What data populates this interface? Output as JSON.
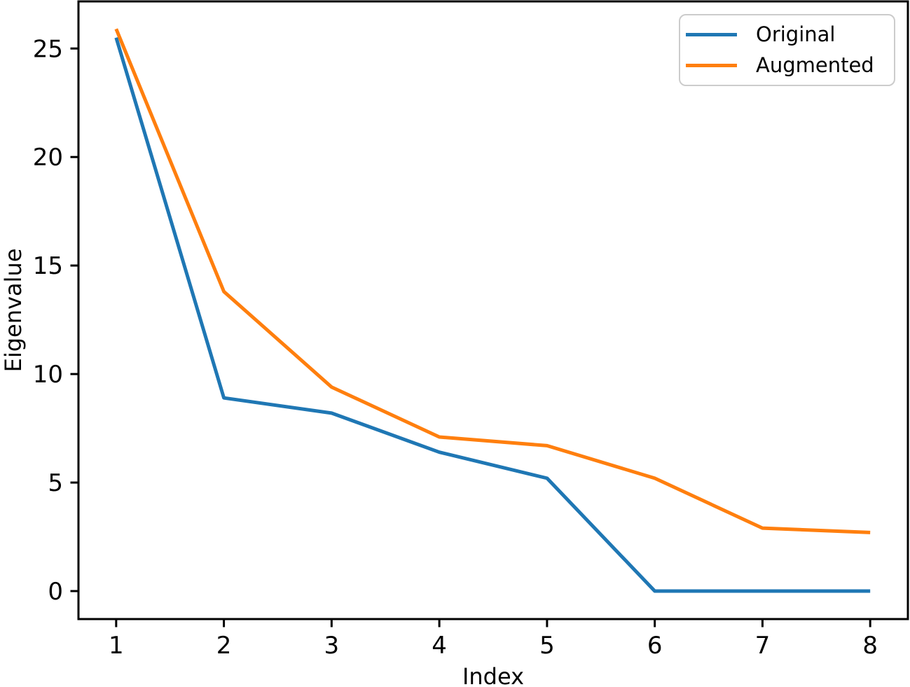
{
  "chart_data": {
    "type": "line",
    "title": "",
    "xlabel": "Index",
    "ylabel": "Eigenvalue",
    "x": [
      1,
      2,
      3,
      4,
      5,
      6,
      7,
      8
    ],
    "series": [
      {
        "name": "Original",
        "color": "#1f77b4",
        "values": [
          25.5,
          8.9,
          8.2,
          6.4,
          5.2,
          0.0,
          0.0,
          0.0
        ]
      },
      {
        "name": "Augmented",
        "color": "#ff7f0e",
        "values": [
          25.9,
          13.8,
          9.4,
          7.1,
          6.7,
          5.2,
          2.9,
          2.7
        ]
      }
    ],
    "xticks": [
      1,
      2,
      3,
      4,
      5,
      6,
      7,
      8
    ],
    "yticks": [
      0,
      5,
      10,
      15,
      20,
      25
    ],
    "xlim": [
      0.65,
      8.35
    ],
    "ylim": [
      -1.29,
      27.17
    ],
    "grid": false,
    "legend": {
      "position": "upper right"
    }
  },
  "colors": {
    "background": "#ffffff",
    "axis": "#000000",
    "text": "#000000",
    "legend_border": "#cccccc",
    "legend_background": "#ffffff"
  }
}
